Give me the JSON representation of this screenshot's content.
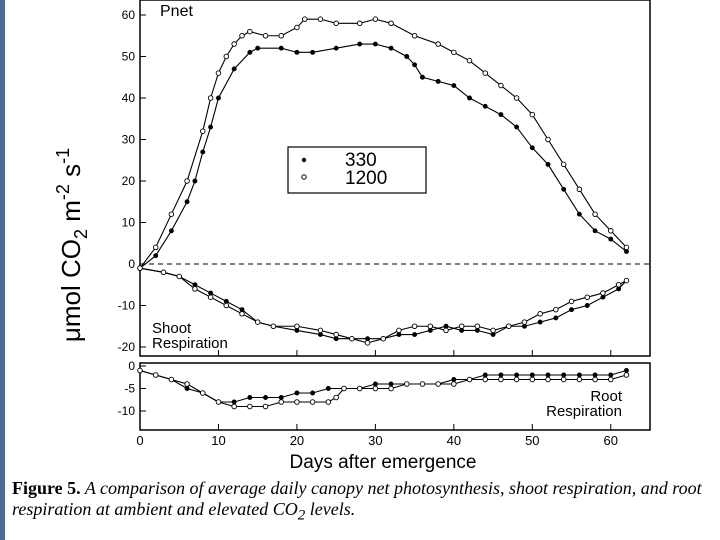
{
  "chart_data": [
    {
      "type": "line",
      "panel": "upper",
      "title": "Pnet",
      "ylabel": "μmol CO2 m-2 s-1",
      "ylim": [
        -20,
        62
      ],
      "xlim": [
        0,
        65
      ],
      "yticks": [
        "60",
        "50",
        "40",
        "30",
        "20",
        "10",
        "0",
        "-10",
        "-20"
      ],
      "legend": {
        "entries": [
          "330",
          "1200"
        ],
        "placement": "center"
      },
      "annotations": [
        "Shoot Respiration"
      ],
      "series": [
        {
          "name": "330",
          "marker": "filled",
          "x": [
            0,
            2,
            4,
            6,
            7,
            8,
            9,
            10,
            12,
            14,
            15,
            18,
            20,
            22,
            25,
            28,
            30,
            32,
            34,
            35,
            36,
            38,
            40,
            42,
            44,
            46,
            48,
            50,
            52,
            54,
            56,
            58,
            60,
            62
          ],
          "values": [
            -1,
            2,
            8,
            15,
            20,
            27,
            33,
            40,
            47,
            51,
            52,
            52,
            51,
            51,
            52,
            53,
            53,
            52,
            50,
            48,
            45,
            44,
            43,
            40,
            38,
            36,
            33,
            28,
            24,
            18,
            12,
            8,
            6,
            3
          ]
        },
        {
          "name": "1200",
          "marker": "open",
          "x": [
            0,
            2,
            4,
            6,
            8,
            9,
            10,
            11,
            12,
            13,
            14,
            16,
            18,
            20,
            21,
            23,
            25,
            28,
            30,
            32,
            35,
            38,
            40,
            42,
            44,
            46,
            48,
            50,
            52,
            54,
            56,
            58,
            60,
            62
          ],
          "values": [
            -1,
            4,
            12,
            20,
            32,
            40,
            46,
            50,
            53,
            55,
            56,
            55,
            55,
            57,
            59,
            59,
            58,
            58,
            59,
            58,
            55,
            53,
            51,
            49,
            46,
            43,
            40,
            36,
            30,
            24,
            18,
            12,
            8,
            4
          ]
        },
        {
          "name": "330 shoot",
          "marker": "filled",
          "x": [
            0,
            3,
            5,
            7,
            9,
            11,
            13,
            15,
            17,
            20,
            23,
            25,
            27,
            29,
            31,
            33,
            35,
            37,
            39,
            41,
            43,
            45,
            47,
            49,
            51,
            53,
            55,
            57,
            59,
            61,
            62
          ],
          "values": [
            -1,
            -2,
            -3,
            -5,
            -7,
            -9,
            -11,
            -14,
            -15,
            -16,
            -17,
            -18,
            -18,
            -18,
            -18,
            -17,
            -17,
            -16,
            -15,
            -16,
            -16,
            -17,
            -15,
            -15,
            -14,
            -13,
            -11,
            -10,
            -8,
            -6,
            -4
          ]
        },
        {
          "name": "1200 shoot",
          "marker": "open",
          "x": [
            0,
            3,
            5,
            7,
            9,
            11,
            13,
            15,
            17,
            20,
            23,
            25,
            27,
            29,
            31,
            33,
            35,
            37,
            39,
            41,
            43,
            45,
            47,
            49,
            51,
            53,
            55,
            57,
            59,
            61,
            62
          ],
          "values": [
            -1,
            -2,
            -3,
            -6,
            -8,
            -10,
            -12,
            -14,
            -15,
            -15,
            -16,
            -17,
            -18,
            -19,
            -18,
            -16,
            -15,
            -15,
            -16,
            -15,
            -15,
            -16,
            -15,
            -14,
            -12,
            -11,
            -9,
            -8,
            -7,
            -5,
            -4
          ]
        }
      ]
    },
    {
      "type": "line",
      "panel": "lower",
      "ylim": [
        -12,
        0
      ],
      "xlim": [
        0,
        65
      ],
      "yticks": [
        "0",
        "-5",
        "-10"
      ],
      "xticks": [
        "0",
        "10",
        "20",
        "30",
        "40",
        "50",
        "60"
      ],
      "xlabel": "Days after emergence",
      "annotations": [
        "Root Respiration"
      ],
      "series": [
        {
          "name": "330",
          "marker": "filled",
          "x": [
            0,
            2,
            4,
            6,
            8,
            10,
            12,
            14,
            16,
            18,
            20,
            22,
            24,
            26,
            28,
            30,
            32,
            34,
            36,
            38,
            40,
            42,
            44,
            46,
            48,
            50,
            52,
            54,
            56,
            58,
            60,
            62
          ],
          "values": [
            -1,
            -2,
            -3,
            -5,
            -6,
            -8,
            -8,
            -7,
            -7,
            -7,
            -6,
            -6,
            -5,
            -5,
            -5,
            -4,
            -4,
            -4,
            -4,
            -4,
            -3,
            -3,
            -2,
            -2,
            -2,
            -2,
            -2,
            -2,
            -2,
            -2,
            -2,
            -1
          ]
        },
        {
          "name": "1200",
          "marker": "open",
          "x": [
            0,
            2,
            4,
            6,
            8,
            10,
            12,
            14,
            16,
            18,
            20,
            22,
            24,
            25,
            26,
            28,
            30,
            32,
            34,
            36,
            38,
            40,
            42,
            44,
            46,
            48,
            50,
            52,
            54,
            56,
            58,
            60,
            62
          ],
          "values": [
            -1,
            -2,
            -3,
            -4,
            -6,
            -8,
            -9,
            -9,
            -9,
            -8,
            -8,
            -8,
            -8,
            -7,
            -5,
            -5,
            -5,
            -5,
            -4,
            -4,
            -4,
            -4,
            -3,
            -3,
            -3,
            -3,
            -3,
            -3,
            -3,
            -3,
            -3,
            -3,
            -2
          ]
        }
      ]
    }
  ],
  "caption": {
    "label": "Figure 5.",
    "text": "A comparison of average daily canopy net photosynthesis, shoot respiration, and root respiration at ambient and elevated CO",
    "subscript": "2",
    "end": " levels."
  },
  "colors": {
    "line": "#000000",
    "side_bar": "#4a6a9a"
  }
}
